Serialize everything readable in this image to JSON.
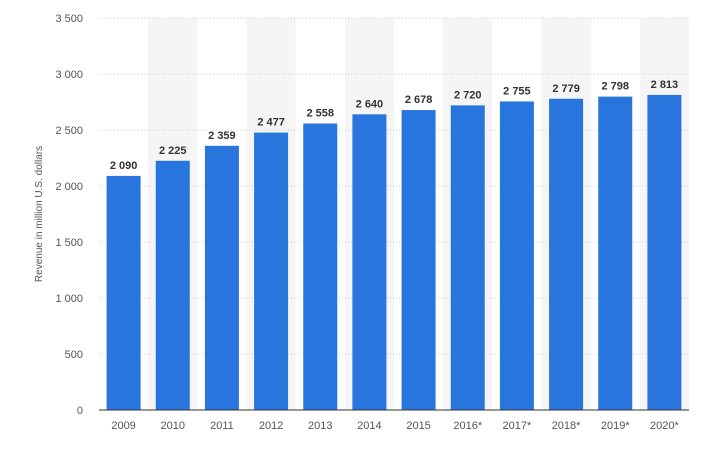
{
  "chart_data": {
    "type": "bar",
    "title": "",
    "xlabel": "",
    "ylabel": "Revenue in million U.S. dollars",
    "categories": [
      "2009",
      "2010",
      "2011",
      "2012",
      "2013",
      "2014",
      "2015",
      "2016*",
      "2017*",
      "2018*",
      "2019*",
      "2020*"
    ],
    "values": [
      2090,
      2225,
      2359,
      2477,
      2558,
      2640,
      2678,
      2720,
      2755,
      2779,
      2798,
      2813
    ],
    "value_labels": [
      "2 090",
      "2 225",
      "2 359",
      "2 477",
      "2 558",
      "2 640",
      "2 678",
      "2 720",
      "2 755",
      "2 779",
      "2 798",
      "2 813"
    ],
    "yticks": [
      0,
      500,
      1000,
      1500,
      2000,
      2500,
      3000,
      3500
    ],
    "ytick_labels": [
      "0",
      "500",
      "1 000",
      "1 500",
      "2 000",
      "2 500",
      "3 000",
      "3 500"
    ],
    "ylim": [
      0,
      3500
    ],
    "grid": true,
    "legend": "none",
    "colors": {
      "bar": "#2876dd",
      "band": "#f5f5f5",
      "grid": "#cfcfcf",
      "axis": "#333333"
    }
  }
}
